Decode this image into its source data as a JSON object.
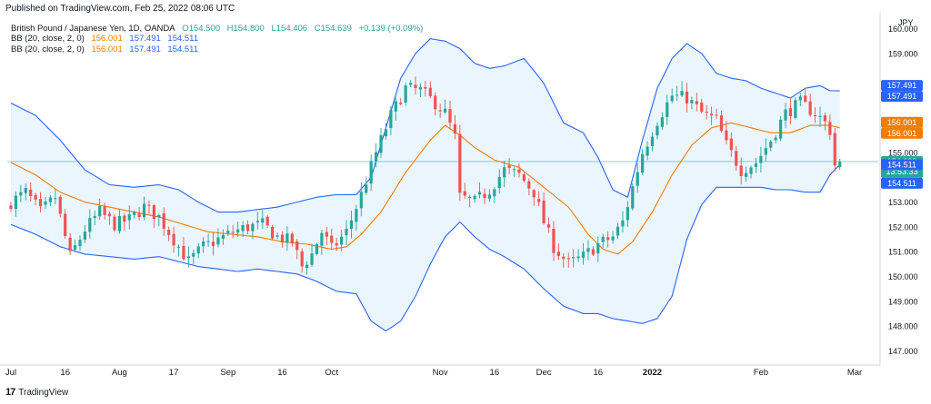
{
  "header": {
    "published": "Published on TradingView.com, Feb 25, 2022 08:06 UTC"
  },
  "legend": {
    "symbol": "British Pound / Japanese Yen, 1D, OANDA",
    "open": "O154.500",
    "high": "H154.800",
    "low": "L154.406",
    "close": "C154.639",
    "change": "+0.139 (+0.09%)",
    "bb_label": "BB (20, close, 2, 0)",
    "bb_basis": "156.001",
    "bb_upper": "157.491",
    "bb_lower": "154.511"
  },
  "footer": {
    "brand_logo": "17",
    "brand": "TradingView"
  },
  "colors": {
    "up": "#26a69a",
    "down": "#ef5350",
    "basis": "#f57c00",
    "band": "#2962ff",
    "band_fill": "#e3f2fd",
    "price_label": "#26a69a",
    "basis_label": "#f57c00",
    "upper_label": "#2962ff",
    "lower_label": "#2962ff"
  },
  "chart_data": {
    "type": "candlestick",
    "title": "British Pound / Japanese Yen, 1D, OANDA",
    "currency": "JPY",
    "ylim": [
      146.5,
      160.5
    ],
    "y_ticks": [
      "147.000",
      "148.000",
      "149.000",
      "150.000",
      "151.000",
      "152.000",
      "153.000",
      "155.000",
      "156.000",
      "159.000",
      "160.000"
    ],
    "x_ticks": [
      {
        "label": "Jul",
        "bar": 0
      },
      {
        "label": "16",
        "bar": 11
      },
      {
        "label": "Aug",
        "bar": 22
      },
      {
        "label": "17",
        "bar": 33
      },
      {
        "label": "Sep",
        "bar": 44
      },
      {
        "label": "16",
        "bar": 55
      },
      {
        "label": "Oct",
        "bar": 65
      },
      {
        "label": "Nov",
        "bar": 87
      },
      {
        "label": "16",
        "bar": 98
      },
      {
        "label": "Dec",
        "bar": 108
      },
      {
        "label": "16",
        "bar": 119
      },
      {
        "label": "2022",
        "bar": 130
      },
      {
        "label": "Feb",
        "bar": 152
      },
      {
        "label": "Mar",
        "bar": 171
      }
    ],
    "bars_total": 171,
    "last_price": "154.639",
    "countdown": "13:53:33",
    "axis_labels": [
      {
        "kind": "upper",
        "value": 157.491,
        "text": "157.491"
      },
      {
        "kind": "upper",
        "value": 157.491,
        "text": "157.491"
      },
      {
        "kind": "basis",
        "value": 156.001,
        "text": "156.001"
      },
      {
        "kind": "basis",
        "value": 156.001,
        "text": "156.001"
      },
      {
        "kind": "price",
        "value": 154.639,
        "text": "154.639"
      },
      {
        "kind": "lower",
        "value": 154.511,
        "text": "154.511"
      },
      {
        "kind": "lower",
        "value": 154.511,
        "text": "154.511"
      }
    ],
    "close_anchors": [
      [
        0,
        153.0
      ],
      [
        3,
        153.4
      ],
      [
        6,
        152.6
      ],
      [
        9,
        153.2
      ],
      [
        12,
        150.8
      ],
      [
        15,
        151.9
      ],
      [
        18,
        152.6
      ],
      [
        21,
        152.1
      ],
      [
        24,
        152.3
      ],
      [
        27,
        152.8
      ],
      [
        30,
        152.4
      ],
      [
        33,
        151.5
      ],
      [
        36,
        150.6
      ],
      [
        39,
        151.2
      ],
      [
        42,
        151.5
      ],
      [
        45,
        151.8
      ],
      [
        48,
        152.0
      ],
      [
        51,
        152.1
      ],
      [
        54,
        151.6
      ],
      [
        57,
        151.4
      ],
      [
        59,
        150.4
      ],
      [
        61,
        150.9
      ],
      [
        63,
        151.8
      ],
      [
        65,
        151.1
      ],
      [
        68,
        151.8
      ],
      [
        71,
        153.3
      ],
      [
        74,
        155.0
      ],
      [
        77,
        156.5
      ],
      [
        80,
        157.6
      ],
      [
        83,
        157.5
      ],
      [
        86,
        157.0
      ],
      [
        88,
        156.6
      ],
      [
        90,
        155.6
      ],
      [
        91,
        153.2
      ],
      [
        94,
        153.0
      ],
      [
        97,
        153.5
      ],
      [
        100,
        154.3
      ],
      [
        103,
        154.1
      ],
      [
        106,
        153.4
      ],
      [
        108,
        152.2
      ],
      [
        110,
        151.2
      ],
      [
        113,
        150.5
      ],
      [
        116,
        150.8
      ],
      [
        119,
        151.3
      ],
      [
        122,
        151.6
      ],
      [
        124,
        152.2
      ],
      [
        126,
        153.6
      ],
      [
        128,
        155.0
      ],
      [
        131,
        156.3
      ],
      [
        134,
        157.3
      ],
      [
        137,
        157.2
      ],
      [
        140,
        156.6
      ],
      [
        143,
        156.3
      ],
      [
        145,
        155.3
      ],
      [
        148,
        154.3
      ],
      [
        151,
        154.6
      ],
      [
        154,
        155.5
      ],
      [
        157,
        156.6
      ],
      [
        160,
        157.0
      ],
      [
        163,
        156.6
      ],
      [
        165,
        156.2
      ],
      [
        166,
        155.9
      ],
      [
        167,
        154.5
      ],
      [
        168,
        154.639
      ]
    ],
    "basis_anchors": [
      [
        0,
        154.6
      ],
      [
        5,
        154.1
      ],
      [
        10,
        153.4
      ],
      [
        15,
        153.0
      ],
      [
        20,
        152.8
      ],
      [
        25,
        152.6
      ],
      [
        30,
        152.4
      ],
      [
        35,
        152.1
      ],
      [
        40,
        151.8
      ],
      [
        45,
        151.7
      ],
      [
        50,
        151.6
      ],
      [
        55,
        151.4
      ],
      [
        60,
        151.3
      ],
      [
        65,
        151.1
      ],
      [
        68,
        151.2
      ],
      [
        71,
        151.7
      ],
      [
        75,
        152.6
      ],
      [
        80,
        154.2
      ],
      [
        85,
        155.5
      ],
      [
        88,
        156.1
      ],
      [
        91,
        155.7
      ],
      [
        94,
        155.2
      ],
      [
        98,
        154.7
      ],
      [
        103,
        154.4
      ],
      [
        108,
        153.6
      ],
      [
        113,
        152.8
      ],
      [
        117,
        151.7
      ],
      [
        120,
        151.1
      ],
      [
        123,
        150.9
      ],
      [
        126,
        151.4
      ],
      [
        130,
        152.6
      ],
      [
        134,
        154.1
      ],
      [
        138,
        155.3
      ],
      [
        142,
        156.0
      ],
      [
        146,
        156.2
      ],
      [
        150,
        156.0
      ],
      [
        154,
        155.8
      ],
      [
        158,
        155.8
      ],
      [
        162,
        156.1
      ],
      [
        166,
        156.1
      ],
      [
        168,
        156.001
      ]
    ],
    "upper_anchors": [
      [
        0,
        157.0
      ],
      [
        5,
        156.5
      ],
      [
        10,
        155.5
      ],
      [
        15,
        154.3
      ],
      [
        20,
        153.7
      ],
      [
        25,
        153.6
      ],
      [
        30,
        153.7
      ],
      [
        34,
        153.5
      ],
      [
        38,
        153.0
      ],
      [
        42,
        152.6
      ],
      [
        46,
        152.6
      ],
      [
        50,
        152.7
      ],
      [
        54,
        152.8
      ],
      [
        58,
        153.0
      ],
      [
        62,
        153.2
      ],
      [
        66,
        153.3
      ],
      [
        70,
        153.3
      ],
      [
        73,
        154.0
      ],
      [
        76,
        156.0
      ],
      [
        79,
        158.0
      ],
      [
        82,
        159.0
      ],
      [
        85,
        159.6
      ],
      [
        88,
        159.5
      ],
      [
        91,
        159.2
      ],
      [
        94,
        158.6
      ],
      [
        97,
        158.4
      ],
      [
        100,
        158.5
      ],
      [
        104,
        158.8
      ],
      [
        108,
        157.8
      ],
      [
        112,
        156.2
      ],
      [
        116,
        155.8
      ],
      [
        119,
        154.8
      ],
      [
        122,
        153.5
      ],
      [
        125,
        153.2
      ],
      [
        128,
        155.5
      ],
      [
        131,
        157.6
      ],
      [
        134,
        158.8
      ],
      [
        137,
        159.4
      ],
      [
        140,
        159.0
      ],
      [
        143,
        158.2
      ],
      [
        146,
        158.0
      ],
      [
        149,
        157.9
      ],
      [
        152,
        157.6
      ],
      [
        155,
        157.4
      ],
      [
        158,
        157.2
      ],
      [
        161,
        157.6
      ],
      [
        164,
        157.7
      ],
      [
        166,
        157.5
      ],
      [
        168,
        157.491
      ]
    ],
    "lower_anchors": [
      [
        0,
        152.1
      ],
      [
        5,
        151.7
      ],
      [
        10,
        151.2
      ],
      [
        15,
        150.9
      ],
      [
        20,
        150.8
      ],
      [
        25,
        150.7
      ],
      [
        30,
        150.8
      ],
      [
        34,
        150.6
      ],
      [
        38,
        150.4
      ],
      [
        42,
        150.3
      ],
      [
        46,
        150.2
      ],
      [
        50,
        150.3
      ],
      [
        54,
        150.2
      ],
      [
        58,
        150.1
      ],
      [
        62,
        149.8
      ],
      [
        66,
        149.4
      ],
      [
        70,
        149.3
      ],
      [
        73,
        148.2
      ],
      [
        76,
        147.8
      ],
      [
        79,
        148.2
      ],
      [
        82,
        149.2
      ],
      [
        85,
        150.5
      ],
      [
        88,
        151.6
      ],
      [
        91,
        152.2
      ],
      [
        94,
        151.6
      ],
      [
        97,
        151.1
      ],
      [
        100,
        150.8
      ],
      [
        104,
        150.3
      ],
      [
        108,
        149.5
      ],
      [
        112,
        148.8
      ],
      [
        116,
        148.5
      ],
      [
        119,
        148.5
      ],
      [
        122,
        148.3
      ],
      [
        125,
        148.2
      ],
      [
        128,
        148.1
      ],
      [
        131,
        148.3
      ],
      [
        134,
        149.2
      ],
      [
        137,
        151.5
      ],
      [
        140,
        152.9
      ],
      [
        143,
        153.6
      ],
      [
        146,
        153.6
      ],
      [
        149,
        153.6
      ],
      [
        152,
        153.6
      ],
      [
        155,
        153.5
      ],
      [
        158,
        153.5
      ],
      [
        161,
        153.4
      ],
      [
        164,
        153.4
      ],
      [
        166,
        154.1
      ],
      [
        168,
        154.511
      ]
    ]
  }
}
